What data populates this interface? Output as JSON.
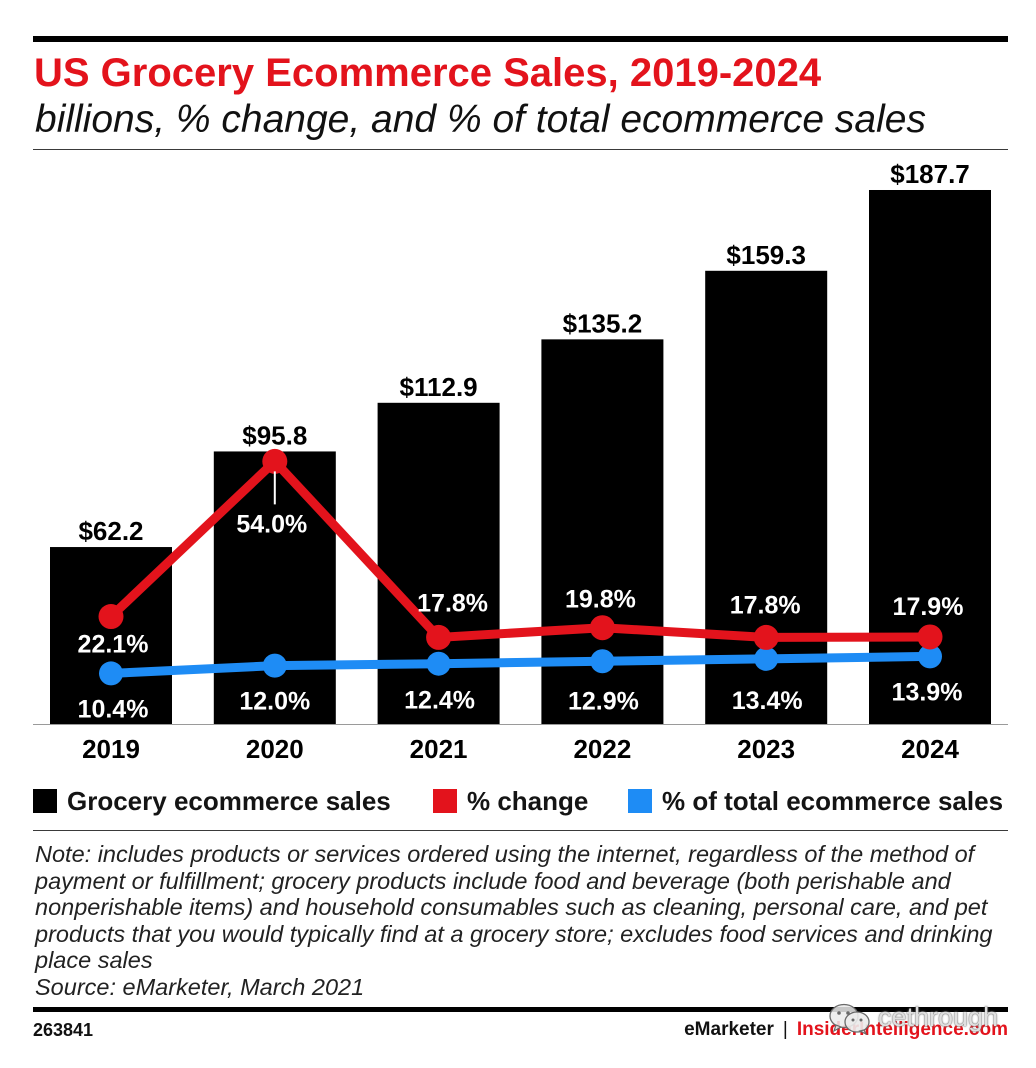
{
  "chart_data": {
    "type": "bar",
    "title": "US Grocery Ecommerce Sales, 2019-2024",
    "subtitle": "billions, % change, and % of total ecommerce sales",
    "categories": [
      "2019",
      "2020",
      "2021",
      "2022",
      "2023",
      "2024"
    ],
    "ylim": [
      0,
      200
    ],
    "y2lim": [
      0,
      117
    ],
    "grid": false,
    "legend_position": "bottom",
    "series": [
      {
        "name": "Grocery ecommerce sales",
        "type": "bar",
        "color": "#000000",
        "values": [
          62.2,
          95.8,
          112.9,
          135.2,
          159.3,
          187.7
        ],
        "labels": [
          "$62.2",
          "$95.8",
          "$112.9",
          "$135.2",
          "$159.3",
          "$187.7"
        ]
      },
      {
        "name": "% change",
        "type": "line",
        "color": "#e3131c",
        "values": [
          22.1,
          54.0,
          17.8,
          19.8,
          17.8,
          17.9
        ],
        "labels": [
          "22.1%",
          "54.0%",
          "17.8%",
          "19.8%",
          "17.8%",
          "17.9%"
        ]
      },
      {
        "name": "% of total ecommerce sales",
        "type": "line",
        "color": "#1e8cf5",
        "values": [
          10.4,
          12.0,
          12.4,
          12.9,
          13.4,
          13.9
        ],
        "labels": [
          "10.4%",
          "12.0%",
          "12.4%",
          "12.9%",
          "13.4%",
          "13.9%"
        ]
      }
    ]
  },
  "note": {
    "lines": [
      "Note: includes products or services ordered using the internet, regardless of the method of",
      "payment or fulfillment; grocery products include food and beverage (both perishable and",
      "nonperishable items) and household consumables such as cleaning, personal care, and pet",
      "products that you would typically find at a grocery store; excludes food services and drinking",
      "place sales"
    ],
    "source": "Source: eMarketer, March 2021"
  },
  "footer": {
    "chart_id": "263841",
    "brand": "eMarketer",
    "separator": "|",
    "site": "InsiderIntelligence.com"
  },
  "watermark": {
    "icon": "wechat-icon",
    "text": "cethrough"
  }
}
